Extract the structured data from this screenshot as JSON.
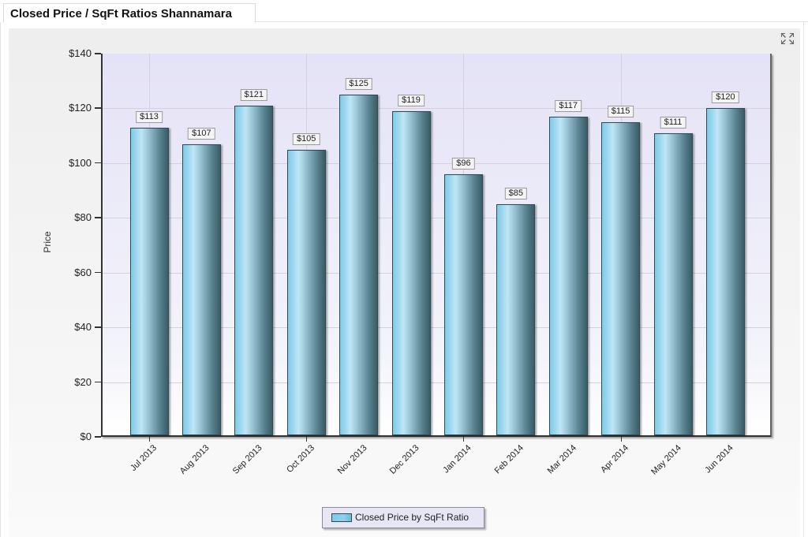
{
  "panel": {
    "title": "Closed Price / SqFt Ratios Shannamara"
  },
  "toolbar": {
    "expand_icon": "expand-arrows-icon"
  },
  "chart_data": {
    "type": "bar",
    "title": "Closed Price / SqFt Ratios Shannamara",
    "xlabel": "",
    "ylabel": "Price",
    "categories": [
      "Jul 2013",
      "Aug 2013",
      "Sep 2013",
      "Oct 2013",
      "Nov 2013",
      "Dec 2013",
      "Jan 2014",
      "Feb 2014",
      "Mar 2014",
      "Apr 2014",
      "May 2014",
      "Jun 2014"
    ],
    "series": [
      {
        "name": "Closed Price by SqFt Ratio",
        "values": [
          113,
          107,
          121,
          105,
          125,
          119,
          96,
          85,
          117,
          115,
          111,
          120
        ],
        "labels": [
          "$113",
          "$107",
          "$121",
          "$105",
          "$125",
          "$119",
          "$96",
          "$85",
          "$117",
          "$115",
          "$111",
          "$120"
        ],
        "color": "#8fd3ee"
      }
    ],
    "ylim": [
      0,
      140
    ],
    "yticks": [
      "$0",
      "$20",
      "$40",
      "$60",
      "$80",
      "$100",
      "$120",
      "$140"
    ],
    "grid": true,
    "legend_position": "bottom"
  },
  "legend": {
    "label": "Closed Price by SqFt Ratio"
  },
  "colors": {
    "bar_light": "#bfe6f5",
    "bar_dark": "#3b5c66",
    "plot_bg": "#e4e2f6"
  }
}
